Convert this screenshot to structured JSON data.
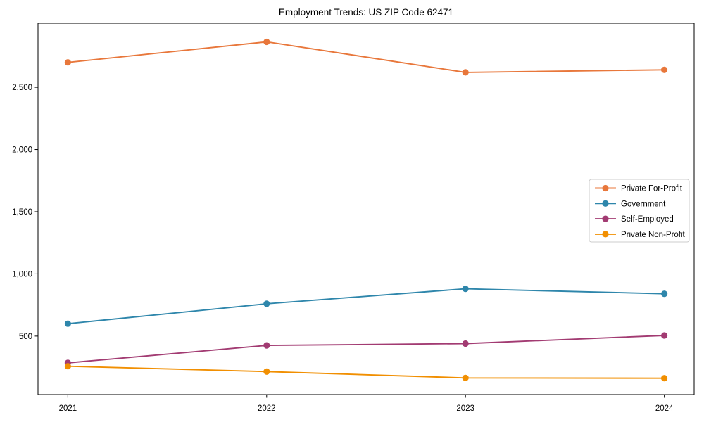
{
  "title": "Employment Trends: US ZIP Code 62471",
  "chart_data": {
    "type": "line",
    "title": "Employment Trends: US ZIP Code 62471",
    "x": [
      2021,
      2022,
      2023,
      2024
    ],
    "x_tick_labels": [
      "2021",
      "2022",
      "2023",
      "2024"
    ],
    "series": [
      {
        "name": "Private For-Profit",
        "color": "#e8773b",
        "values": [
          2700,
          2865,
          2620,
          2640
        ]
      },
      {
        "name": "Government",
        "color": "#2e86ab",
        "values": [
          600,
          760,
          880,
          840
        ]
      },
      {
        "name": "Self-Employed",
        "color": "#a23b72",
        "values": [
          285,
          425,
          440,
          505
        ]
      },
      {
        "name": "Private Non-Profit",
        "color": "#f18f01",
        "values": [
          258,
          215,
          164,
          162
        ]
      }
    ],
    "yticks": [
      500,
      1000,
      1500,
      2000,
      2500
    ],
    "ytick_labels": [
      "500",
      "1,000",
      "1,500",
      "2,000",
      "2,500"
    ],
    "xlim": [
      2020.85,
      2024.15
    ],
    "ylim": [
      30,
      3015
    ],
    "xlabel": "",
    "ylabel": "",
    "grid": false,
    "marker": "circle",
    "line_width": 1.9,
    "marker_radius": 4.6,
    "legend": {
      "position": "center-right",
      "labels": [
        "Private For-Profit",
        "Government",
        "Self-Employed",
        "Private Non-Profit"
      ],
      "border_color": "#cccccc",
      "background": "#ffffff"
    },
    "text_color": "#000000",
    "spine_color": "#000000"
  }
}
